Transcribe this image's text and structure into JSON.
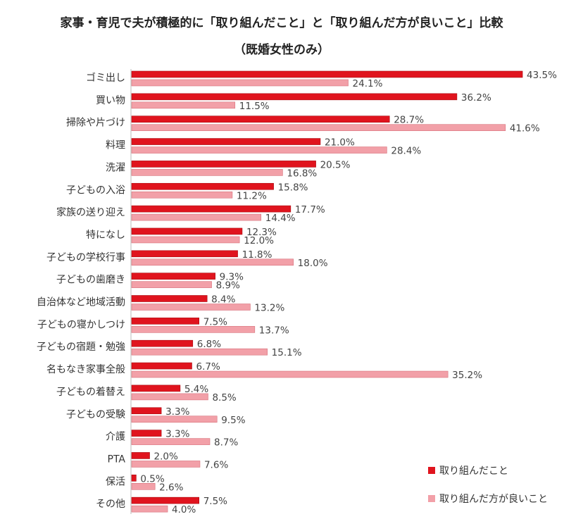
{
  "chart_data": {
    "type": "bar",
    "orientation": "horizontal",
    "title": "家事・育児で夫が積極的に「取り組んだこと」と「取り組んだ方が良いこと」比較",
    "subtitle": "（既婚女性のみ）",
    "categories": [
      "ゴミ出し",
      "買い物",
      "掃除や片づけ",
      "料理",
      "洗濯",
      "子どもの入浴",
      "家族の送り迎え",
      "特になし",
      "子どもの学校行事",
      "子どもの歯磨き",
      "自治体など地域活動",
      "子どもの寝かしつけ",
      "子どもの宿題・勉強",
      "名もなき家事全般",
      "子どもの着替え",
      "子どもの受験",
      "介護",
      "PTA",
      "保活",
      "その他"
    ],
    "series": [
      {
        "name": "取り組んだこと",
        "color": "#e0141e",
        "values": [
          43.5,
          36.2,
          28.7,
          21.0,
          20.5,
          15.8,
          17.7,
          12.3,
          11.8,
          9.3,
          8.4,
          7.5,
          6.8,
          6.7,
          5.4,
          3.3,
          3.3,
          2.0,
          0.5,
          7.5
        ]
      },
      {
        "name": "取り組んだ方が良いこと",
        "color": "#f2a0a8",
        "values": [
          24.1,
          11.5,
          41.6,
          28.4,
          16.8,
          11.2,
          14.4,
          12.0,
          18.0,
          8.9,
          13.2,
          13.7,
          15.1,
          35.2,
          8.5,
          9.5,
          8.7,
          7.6,
          2.6,
          4.0
        ]
      }
    ],
    "value_suffix": "%",
    "xlim": [
      0,
      45
    ],
    "legend": "bottom-right",
    "grid": false
  }
}
